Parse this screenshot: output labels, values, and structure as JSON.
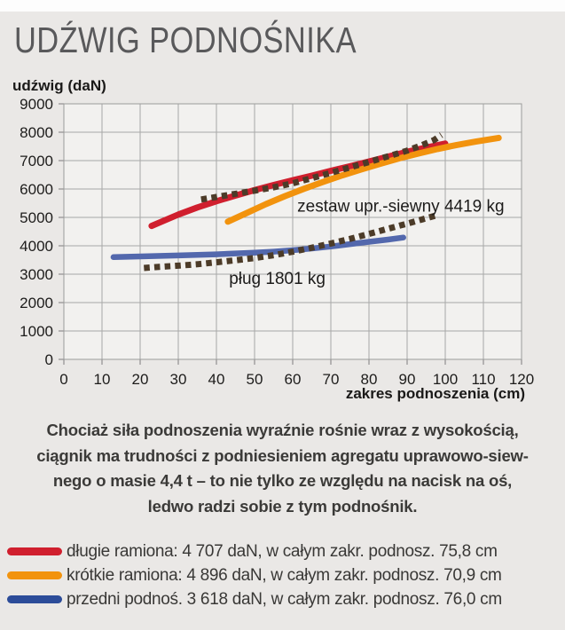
{
  "header": {
    "title": "UDŹWIG PODNOŚNIKA"
  },
  "chart_data": {
    "type": "line",
    "title": "UDŹWIG PODNOŚNIKA",
    "ylabel": "udźwig (daN)",
    "xlabel": "zakres podnoszenia (cm)",
    "xlim": [
      0,
      120
    ],
    "ylim": [
      0,
      9000
    ],
    "xticks": [
      0,
      10,
      20,
      30,
      40,
      50,
      60,
      70,
      80,
      90,
      100,
      110,
      120
    ],
    "yticks": [
      0,
      1000,
      2000,
      3000,
      4000,
      5000,
      6000,
      7000,
      8000,
      9000
    ],
    "grid": true,
    "legend_position": "below",
    "series": [
      {
        "id": "dlugie-ramiona",
        "name": "długie ramiona",
        "color": "#d01f2e",
        "style": "solid",
        "width": 7,
        "points": [
          [
            23,
            4700
          ],
          [
            30,
            5100
          ],
          [
            35,
            5350
          ],
          [
            40,
            5570
          ],
          [
            45,
            5770
          ],
          [
            50,
            5960
          ],
          [
            55,
            6140
          ],
          [
            60,
            6310
          ],
          [
            65,
            6470
          ],
          [
            70,
            6640
          ],
          [
            75,
            6800
          ],
          [
            80,
            6970
          ],
          [
            85,
            7140
          ],
          [
            90,
            7310
          ],
          [
            95,
            7460
          ],
          [
            100,
            7600
          ]
        ]
      },
      {
        "id": "krotkie-ramiona",
        "name": "krótkie ramiona",
        "color": "#f2930e",
        "style": "solid",
        "width": 7,
        "points": [
          [
            43,
            4850
          ],
          [
            48,
            5160
          ],
          [
            53,
            5470
          ],
          [
            58,
            5750
          ],
          [
            63,
            6010
          ],
          [
            68,
            6250
          ],
          [
            73,
            6480
          ],
          [
            78,
            6690
          ],
          [
            83,
            6890
          ],
          [
            88,
            7080
          ],
          [
            93,
            7250
          ],
          [
            98,
            7410
          ],
          [
            103,
            7550
          ],
          [
            108,
            7670
          ],
          [
            114,
            7800
          ]
        ]
      },
      {
        "id": "przedni-podnosnik",
        "name": "przedni podnoś.",
        "color": "#5368ad",
        "style": "solid",
        "width": 6.5,
        "points": [
          [
            13,
            3600
          ],
          [
            20,
            3625
          ],
          [
            30,
            3660
          ],
          [
            40,
            3700
          ],
          [
            50,
            3755
          ],
          [
            55,
            3795
          ],
          [
            60,
            3845
          ],
          [
            65,
            3905
          ],
          [
            70,
            3975
          ],
          [
            75,
            4060
          ],
          [
            80,
            4140
          ],
          [
            85,
            4220
          ],
          [
            89,
            4290
          ]
        ]
      },
      {
        "id": "zestaw-uprawowo-siewny",
        "name": "zestaw upr.-siewny 4419 kg",
        "color": "#4c3b28",
        "style": "dotted",
        "width": 7,
        "points": [
          [
            36,
            5630
          ],
          [
            40,
            5720
          ],
          [
            45,
            5830
          ],
          [
            50,
            5940
          ],
          [
            55,
            6060
          ],
          [
            60,
            6200
          ],
          [
            65,
            6380
          ],
          [
            70,
            6570
          ],
          [
            75,
            6760
          ],
          [
            80,
            6950
          ],
          [
            85,
            7150
          ],
          [
            90,
            7350
          ],
          [
            94,
            7550
          ],
          [
            97,
            7720
          ],
          [
            99,
            7900
          ]
        ]
      },
      {
        "id": "plug",
        "name": "pług 1801 kg",
        "color": "#4c3b28",
        "style": "dotted",
        "width": 7,
        "points": [
          [
            21,
            3220
          ],
          [
            25,
            3260
          ],
          [
            30,
            3300
          ],
          [
            35,
            3350
          ],
          [
            40,
            3420
          ],
          [
            45,
            3490
          ],
          [
            50,
            3570
          ],
          [
            55,
            3670
          ],
          [
            60,
            3790
          ],
          [
            65,
            3930
          ],
          [
            70,
            4080
          ],
          [
            75,
            4240
          ],
          [
            80,
            4420
          ],
          [
            85,
            4600
          ],
          [
            90,
            4780
          ],
          [
            94,
            4930
          ],
          [
            98,
            5080
          ]
        ]
      }
    ],
    "annotations": [
      {
        "text": "zestaw upr.-siewny 4419 kg",
        "x_cm": 61.2,
        "y_dan": 5200
      },
      {
        "text": "pług 1801 kg",
        "x_cm": 43.3,
        "y_dan": 2650
      }
    ]
  },
  "caption": {
    "lines": [
      "Chociaż siła podnoszenia wyraźnie rośnie wraz z wysokością,",
      "ciągnik ma trudności z podniesieniem agregatu uprawowo-siew-",
      "nego o masie 4,4 t – to nie tylko ze względu na nacisk na oś,",
      "ledwo radzi sobie z tym podnośnik."
    ]
  },
  "legend": {
    "items": [
      {
        "label": "długie ramiona: 4 707 daN, w całym zakr. podnosz. 75,8 cm",
        "color": "#d01f2e"
      },
      {
        "label": "krótkie ramiona: 4 896 daN, w całym zakr. podnosz. 70,9 cm",
        "color": "#f2930e"
      },
      {
        "label": "przedni podnoś. 3 618 daN, w całym zakr. podnosz. 76,0 cm",
        "color": "#2c4c99"
      }
    ]
  },
  "colors": {
    "page_bg": "#eae8e6",
    "plot_bg": "#f2f1ef",
    "grid": "#a7a7a7",
    "axis": "#8f8f8f",
    "title": "#59595b",
    "text": "#3b3a38"
  }
}
